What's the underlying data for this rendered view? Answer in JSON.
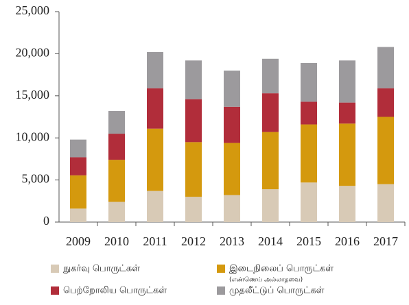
{
  "chart_data": {
    "type": "stacked_bar",
    "categories": [
      "2009",
      "2010",
      "2011",
      "2012",
      "2013",
      "2014",
      "2015",
      "2016",
      "2017"
    ],
    "series": [
      {
        "name": "நுகர்வு பொருட்கள்",
        "color": "#d8cab6",
        "values": [
          1600,
          2400,
          3700,
          3000,
          3200,
          3900,
          4700,
          4300,
          4500
        ]
      },
      {
        "name": "இடைநிலைப் பொருட்கள்",
        "color": "#d4990e",
        "values": [
          3950,
          5000,
          7400,
          6500,
          6200,
          6800,
          6900,
          7400,
          8000
        ]
      },
      {
        "name": "பெற்றோலிய பொருட்கள்",
        "color": "#b12d3a",
        "values": [
          2150,
          3100,
          4800,
          5100,
          4300,
          4600,
          2700,
          2500,
          3400
        ]
      },
      {
        "name": "முதலீட்டுப் பொருட்கள்",
        "color": "#9c9a9d",
        "values": [
          2100,
          2700,
          4300,
          4600,
          4300,
          4100,
          4600,
          5000,
          4900
        ]
      }
    ],
    "legend_note": "(எண்ணெய் அல்லாதவை)",
    "ylim": [
      0,
      25000
    ],
    "yticks": [
      0,
      {
        "value": 5000,
        "label": "5,000"
      },
      {
        "value": 10000,
        "label": "10,000"
      },
      {
        "value": 15000,
        "label": "15,000"
      },
      {
        "value": 20000,
        "label": "20,000"
      },
      {
        "value": 25000,
        "label": "25,000"
      }
    ],
    "grid": false,
    "legend": "bottom"
  }
}
